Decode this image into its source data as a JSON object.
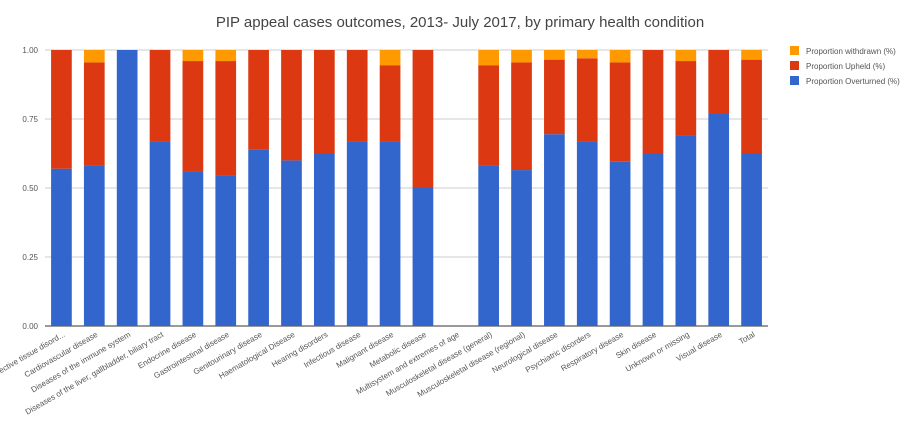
{
  "chart_data": {
    "type": "bar",
    "stacked": true,
    "title": "PIP appeal cases outcomes, 2013- July 2017, by primary health condition",
    "xlabel": "",
    "ylabel": "",
    "ylim": [
      0,
      1
    ],
    "yticks": [
      "0.00",
      "0.25",
      "0.50",
      "0.75",
      "1.00"
    ],
    "grid": true,
    "legend_position": "right",
    "categories": [
      "Connective tissue disord...",
      "Cardiovascular disease",
      "Diseases of the immune system",
      "Diseases of the liver, gallbladder, biliary tract",
      "Endocrine disease",
      "Gastrointestinal disease",
      "Genitourinary disease",
      "Haematological Disease",
      "Hearing disorders",
      "Infectious disease",
      "Malignant disease",
      "Metabolic disease",
      "Multisystem and extremes of age",
      "Musculoskeletal disease (general)",
      "Musculoskeletal disease (regional)",
      "Neurological disease",
      "Psychiatric disorders",
      "Respiratory disease",
      "Skin disease",
      "Unknown or missing",
      "Visual disease",
      "Total"
    ],
    "series": [
      {
        "name": "Proportion Overturned (%)",
        "color": "#3366cc",
        "values": [
          0.57,
          0.58,
          1.0,
          0.67,
          0.56,
          0.545,
          0.64,
          0.6,
          0.625,
          0.67,
          0.67,
          0.5,
          0,
          0.58,
          0.565,
          0.695,
          0.67,
          0.595,
          0.625,
          0.69,
          0.77,
          0.625
        ]
      },
      {
        "name": "Proportion Upheld (%)",
        "color": "#dc3912",
        "values": [
          0.43,
          0.375,
          0.0,
          0.33,
          0.4,
          0.415,
          0.36,
          0.4,
          0.375,
          0.33,
          0.275,
          0.5,
          0,
          0.365,
          0.39,
          0.27,
          0.3,
          0.36,
          0.375,
          0.27,
          0.23,
          0.34
        ]
      },
      {
        "name": "Proportion withdrawn (%)",
        "color": "#ff9900",
        "values": [
          0.0,
          0.045,
          0.0,
          0.0,
          0.04,
          0.04,
          0.0,
          0.0,
          0.0,
          0.0,
          0.055,
          0.0,
          0,
          0.055,
          0.045,
          0.035,
          0.03,
          0.045,
          0.0,
          0.04,
          0.0,
          0.035
        ]
      }
    ],
    "legend_order": [
      "Proportion withdrawn (%)",
      "Proportion Upheld (%)",
      "Proportion Overturned (%)"
    ]
  }
}
